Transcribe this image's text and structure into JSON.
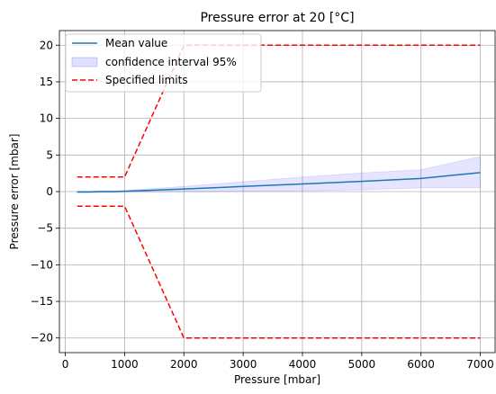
{
  "chart_data": {
    "type": "line",
    "title": "Pressure error at 20 [°C]",
    "xlabel": "Pressure [mbar]",
    "ylabel": "Pressure error [mbar]",
    "xlim": [
      -100,
      7250
    ],
    "ylim": [
      -22,
      22
    ],
    "xticks": [
      0,
      1000,
      2000,
      3000,
      4000,
      5000,
      6000,
      7000
    ],
    "yticks": [
      -20,
      -15,
      -10,
      -5,
      0,
      5,
      10,
      15,
      20
    ],
    "xtick_labels": [
      "0",
      "1000",
      "2000",
      "3000",
      "4000",
      "5000",
      "6000",
      "7000"
    ],
    "ytick_labels": [
      "−20",
      "−15",
      "−10",
      "−5",
      "0",
      "5",
      "10",
      "15",
      "20"
    ],
    "grid": true,
    "legend_position": "top-left",
    "series": [
      {
        "name": "Mean value",
        "kind": "line",
        "color": "#1f77b4",
        "x": [
          200,
          400,
          600,
          800,
          1000,
          2000,
          3000,
          4000,
          5000,
          6000,
          7000
        ],
        "y": [
          -0.05,
          -0.05,
          0.0,
          0.0,
          0.05,
          0.35,
          0.7,
          1.05,
          1.4,
          1.8,
          2.6
        ]
      },
      {
        "name": "confidence interval 95%",
        "kind": "band",
        "color": "#0000ff",
        "x": [
          200,
          400,
          600,
          800,
          1000,
          2000,
          3000,
          4000,
          5000,
          6000,
          7000
        ],
        "lower": [
          -0.15,
          -0.15,
          -0.1,
          -0.1,
          -0.05,
          0.0,
          0.05,
          0.1,
          0.25,
          0.5,
          0.5
        ],
        "upper": [
          0.05,
          0.05,
          0.1,
          0.1,
          0.15,
          0.7,
          1.35,
          2.0,
          2.55,
          3.0,
          4.8
        ]
      },
      {
        "name": "Specified limits",
        "kind": "dashed",
        "color": "#ff0000",
        "x": [
          200,
          1000,
          2000,
          7000
        ],
        "y": [
          2,
          2,
          20,
          20
        ]
      },
      {
        "name": "",
        "kind": "dashed",
        "color": "#ff0000",
        "x": [
          200,
          1000,
          2000,
          7000
        ],
        "y": [
          -2,
          -2,
          -20,
          -20
        ]
      }
    ]
  }
}
